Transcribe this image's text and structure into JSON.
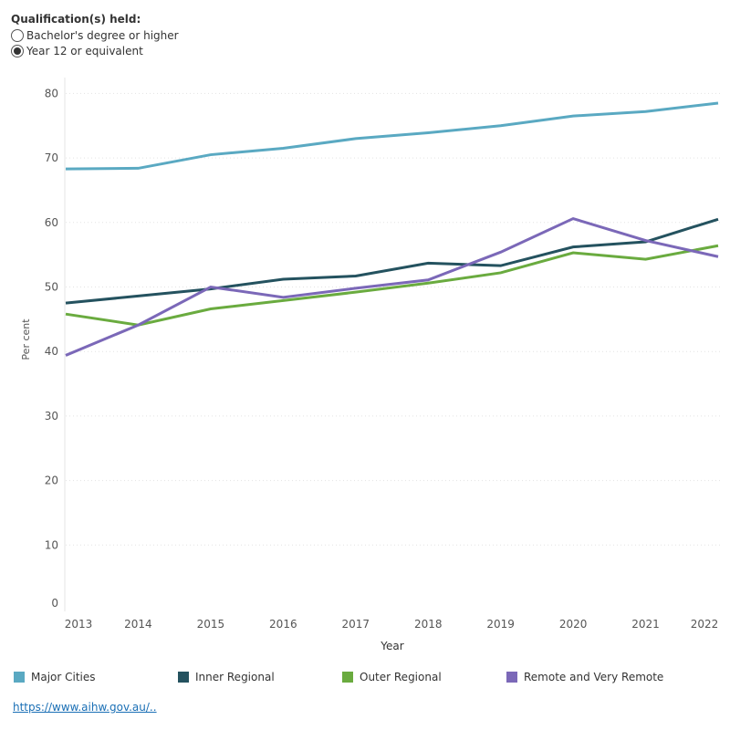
{
  "filter": {
    "title": "Qualification(s) held:",
    "options": [
      {
        "label": "Bachelor's degree or higher",
        "selected": false
      },
      {
        "label": "Year 12 or equivalent",
        "selected": true
      }
    ]
  },
  "link": "https://www.aihw.gov.au/..",
  "chart_data": {
    "type": "line",
    "title": "",
    "xlabel": "Year",
    "ylabel": "Per cent",
    "x": [
      2013,
      2014,
      2015,
      2016,
      2017,
      2018,
      2019,
      2020,
      2021,
      2022
    ],
    "ylim": [
      0,
      80
    ],
    "yticks": [
      0,
      10,
      20,
      30,
      40,
      50,
      60,
      70,
      80
    ],
    "grid": true,
    "legend": "bottom",
    "series": [
      {
        "name": "Major Cities",
        "color": "#5aa9c2",
        "values": [
          68.3,
          68.4,
          70.5,
          71.5,
          73.0,
          73.9,
          75.0,
          76.5,
          77.2,
          78.5
        ]
      },
      {
        "name": "Inner Regional",
        "color": "#24525f",
        "values": [
          47.5,
          48.6,
          49.7,
          51.2,
          51.7,
          53.7,
          53.3,
          56.2,
          57.0,
          60.5
        ]
      },
      {
        "name": "Outer Regional",
        "color": "#6aab3f",
        "values": [
          45.8,
          44.1,
          46.6,
          47.9,
          49.2,
          50.6,
          52.2,
          55.3,
          54.3,
          56.4
        ]
      },
      {
        "name": "Remote and Very Remote",
        "color": "#7b68b8",
        "values": [
          39.4,
          44.1,
          50.0,
          48.4,
          49.8,
          51.1,
          55.4,
          60.6,
          57.2,
          54.7
        ]
      }
    ]
  }
}
